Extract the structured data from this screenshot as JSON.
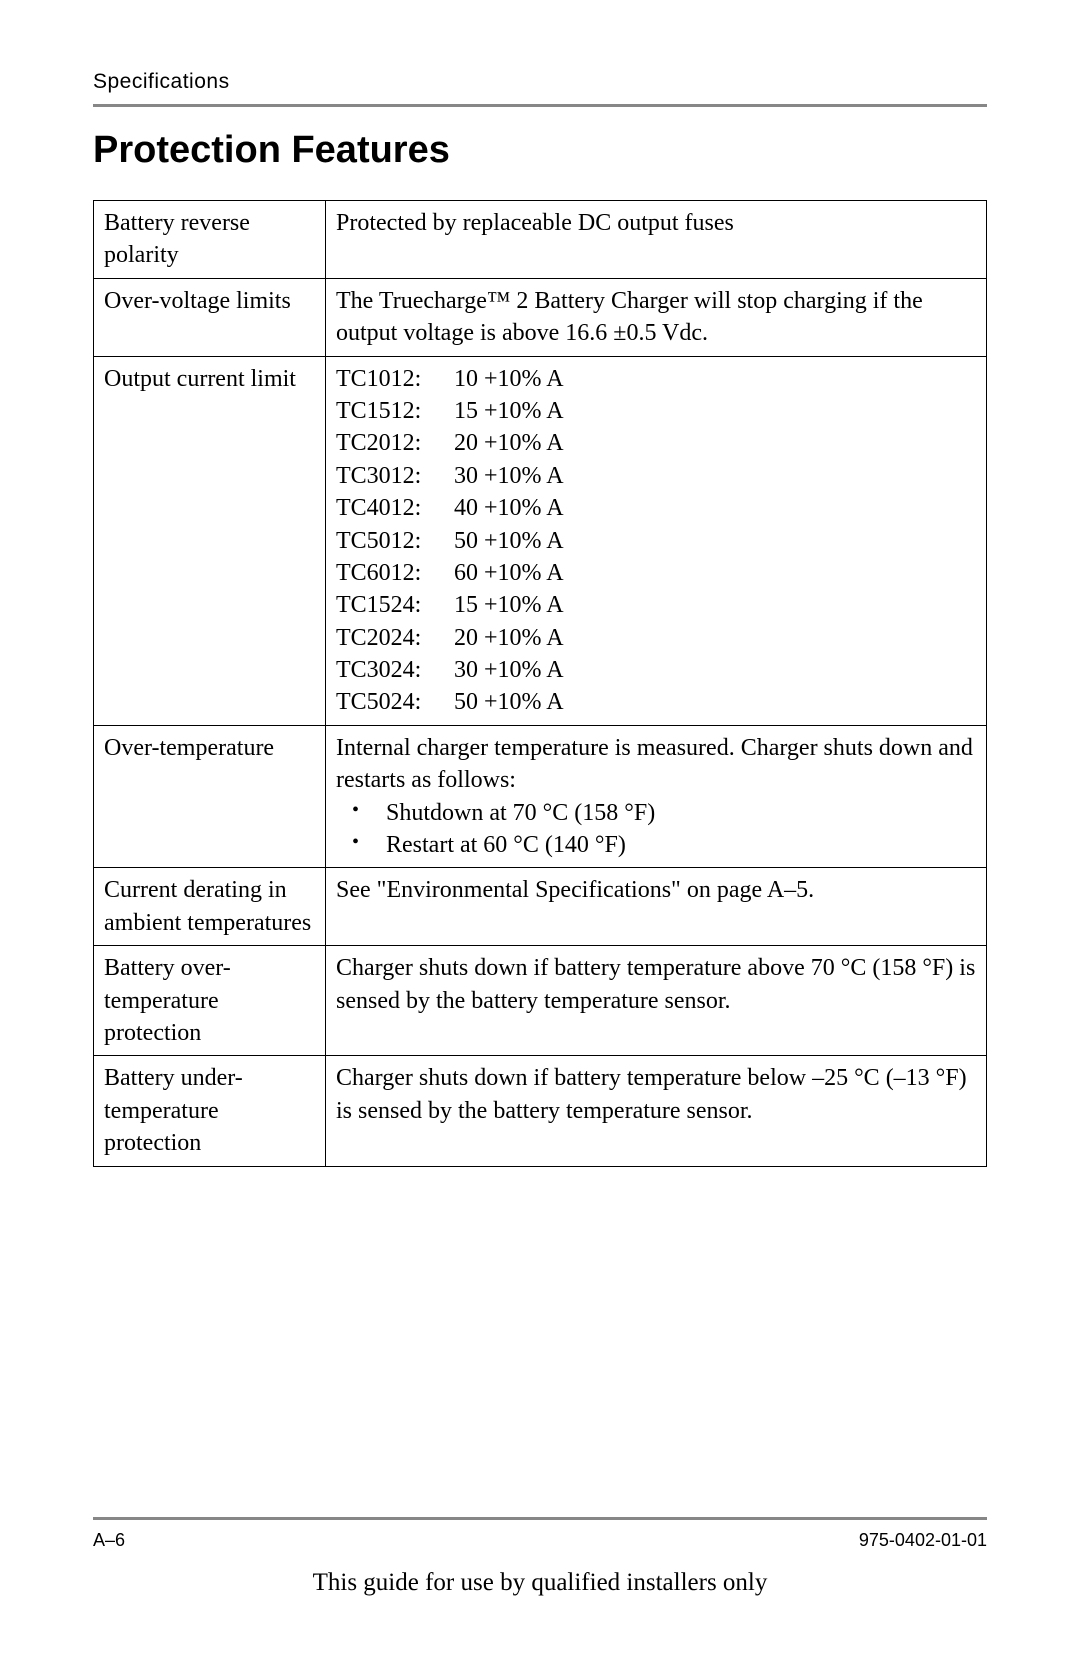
{
  "header": {
    "label": "Specifications"
  },
  "title": "Protection Features",
  "table": {
    "rows": [
      {
        "label": "Battery reverse polarity",
        "value_type": "text",
        "value": "Protected by replaceable DC output fuses"
      },
      {
        "label": "Over-voltage limits",
        "value_type": "text",
        "value": "The Truecharge™ 2 Battery Charger will stop charging if the output voltage is above 16.6 ±0.5 Vdc."
      },
      {
        "label": "Output current limit",
        "value_type": "models",
        "models": [
          {
            "name": "TC1012:",
            "spec": "10 +10% A"
          },
          {
            "name": "TC1512:",
            "spec": "15 +10% A"
          },
          {
            "name": "TC2012:",
            "spec": "20 +10% A"
          },
          {
            "name": "TC3012:",
            "spec": "30 +10% A"
          },
          {
            "name": "TC4012:",
            "spec": "40 +10% A"
          },
          {
            "name": "TC5012:",
            "spec": "50 +10% A"
          },
          {
            "name": "TC6012:",
            "spec": "60 +10% A"
          },
          {
            "name": "TC1524:",
            "spec": "15 +10% A"
          },
          {
            "name": "TC2024:",
            "spec": "20 +10% A"
          },
          {
            "name": "TC3024:",
            "spec": "30 +10% A"
          },
          {
            "name": "TC5024:",
            "spec": "50 +10% A"
          }
        ]
      },
      {
        "label": "Over-temperature",
        "value_type": "text_bullets",
        "value": "Internal charger temperature is measured. Charger shuts down and restarts as follows:",
        "bullets": [
          "Shutdown at 70 °C (158 °F)",
          "Restart at 60 °C (140 °F)"
        ]
      },
      {
        "label": "Current derating in ambient temperatures",
        "value_type": "text",
        "value": "See \"Environmental Specifications\" on page A–5."
      },
      {
        "label": "Battery over-temperature protection",
        "value_type": "text",
        "value": "Charger shuts down if battery temperature above 70 °C (158 °F) is sensed by the battery temperature sensor."
      },
      {
        "label": "Battery under-temperature protection",
        "value_type": "text",
        "value": "Charger shuts down if battery temperature below –25 °C (–13 °F) is sensed by the battery temperature sensor."
      }
    ]
  },
  "footer": {
    "page_number": "A–6",
    "doc_number": "975-0402-01-01",
    "note": "This guide for use by qualified installers only"
  },
  "styles": {
    "page_bg": "#ffffff",
    "text_color": "#000000",
    "divider_color": "#878787",
    "body_font_size": 24,
    "title_font_size": 38,
    "header_font_size": 21,
    "footer_font_size": 18,
    "note_font_size": 25
  }
}
